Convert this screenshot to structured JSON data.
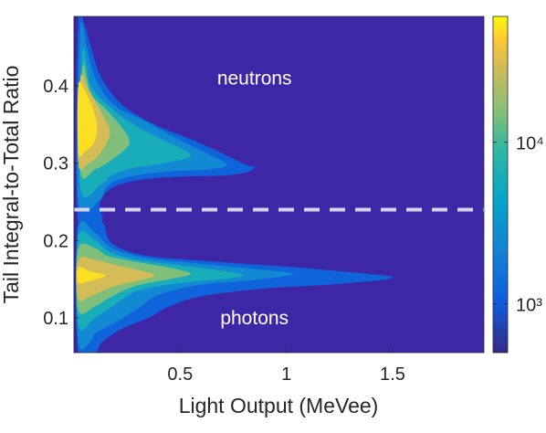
{
  "chart_data": {
    "type": "heatmap",
    "title": "",
    "xlabel": "Light Output (MeVee)",
    "ylabel": "Tail Integral-to-Total Ratio",
    "xlim": [
      0.0,
      1.93
    ],
    "ylim": [
      0.055,
      0.49
    ],
    "xticks": [
      0.5,
      1,
      1.5
    ],
    "xtick_labels": [
      "0.5",
      "1",
      "1.5"
    ],
    "yticks": [
      0.1,
      0.2,
      0.3,
      0.4
    ],
    "ytick_labels": [
      "0.1",
      "0.2",
      "0.3",
      "0.4"
    ],
    "grid": false,
    "colorbar": {
      "scale": "log",
      "range": [
        500,
        60000
      ],
      "ticks": [
        1000,
        10000
      ],
      "tick_labels": [
        "10³",
        "10⁴"
      ],
      "colormap": "parula"
    },
    "threshold_line": {
      "y": 0.24,
      "style": "dashed",
      "color": "#D8D4EE"
    },
    "annotations": [
      {
        "text": "neutrons",
        "x": 0.85,
        "y": 0.41
      },
      {
        "text": "photons",
        "x": 0.85,
        "y": 0.1
      }
    ],
    "regions": [
      {
        "label": "neutrons",
        "levels": [
          {
            "value": 1200,
            "boundary": [
              [
                0.02,
                0.478
              ],
              [
                0.05,
                0.478
              ],
              [
                0.08,
                0.45
              ],
              [
                0.13,
                0.41
              ],
              [
                0.23,
                0.375
              ],
              [
                0.38,
                0.35
              ],
              [
                0.56,
                0.33
              ],
              [
                0.72,
                0.31
              ],
              [
                0.81,
                0.298
              ],
              [
                0.85,
                0.295
              ],
              [
                0.81,
                0.288
              ],
              [
                0.69,
                0.284
              ],
              [
                0.52,
                0.283
              ],
              [
                0.35,
                0.28
              ],
              [
                0.22,
                0.273
              ],
              [
                0.15,
                0.262
              ],
              [
                0.12,
                0.245
              ],
              [
                0.13,
                0.225
              ],
              [
                0.02,
                0.225
              ]
            ]
          },
          {
            "value": 2500,
            "boundary": [
              [
                0.03,
                0.47
              ],
              [
                0.06,
                0.45
              ],
              [
                0.1,
                0.41
              ],
              [
                0.19,
                0.375
              ],
              [
                0.33,
                0.355
              ],
              [
                0.5,
                0.33
              ],
              [
                0.63,
                0.312
              ],
              [
                0.72,
                0.298
              ],
              [
                0.63,
                0.292
              ],
              [
                0.48,
                0.29
              ],
              [
                0.33,
                0.286
              ],
              [
                0.21,
                0.279
              ],
              [
                0.15,
                0.268
              ],
              [
                0.12,
                0.252
              ],
              [
                0.02,
                0.252
              ]
            ]
          },
          {
            "value": 6000,
            "boundary": [
              [
                0.04,
                0.445
              ],
              [
                0.08,
                0.4
              ],
              [
                0.16,
                0.375
              ],
              [
                0.28,
                0.35
              ],
              [
                0.42,
                0.33
              ],
              [
                0.55,
                0.31
              ],
              [
                0.42,
                0.3
              ],
              [
                0.28,
                0.294
              ],
              [
                0.18,
                0.285
              ],
              [
                0.13,
                0.273
              ],
              [
                0.03,
                0.268
              ]
            ]
          },
          {
            "value": 15000,
            "boundary": [
              [
                0.04,
                0.425
              ],
              [
                0.08,
                0.39
              ],
              [
                0.15,
                0.37
              ],
              [
                0.23,
                0.345
              ],
              [
                0.26,
                0.325
              ],
              [
                0.18,
                0.305
              ],
              [
                0.1,
                0.292
              ],
              [
                0.03,
                0.29
              ]
            ]
          },
          {
            "value": 30000,
            "boundary": [
              [
                0.03,
                0.41
              ],
              [
                0.07,
                0.395
              ],
              [
                0.13,
                0.365
              ],
              [
                0.17,
                0.34
              ],
              [
                0.13,
                0.315
              ],
              [
                0.07,
                0.3
              ],
              [
                0.02,
                0.3
              ]
            ]
          },
          {
            "value": 50000,
            "boundary": [
              [
                0.02,
                0.4
              ],
              [
                0.05,
                0.395
              ],
              [
                0.09,
                0.37
              ],
              [
                0.11,
                0.345
              ],
              [
                0.09,
                0.325
              ],
              [
                0.05,
                0.315
              ],
              [
                0.02,
                0.315
              ]
            ]
          }
        ]
      },
      {
        "label": "photons",
        "levels": [
          {
            "value": 1200,
            "boundary": [
              [
                0.02,
                0.225
              ],
              [
                0.13,
                0.225
              ],
              [
                0.18,
                0.196
              ],
              [
                0.35,
                0.18
              ],
              [
                0.7,
                0.172
              ],
              [
                1.05,
                0.165
              ],
              [
                1.3,
                0.159
              ],
              [
                1.45,
                0.155
              ],
              [
                1.5,
                0.153
              ],
              [
                1.45,
                0.149
              ],
              [
                1.2,
                0.143
              ],
              [
                0.9,
                0.138
              ],
              [
                0.6,
                0.128
              ],
              [
                0.45,
                0.115
              ],
              [
                0.35,
                0.1
              ],
              [
                0.22,
                0.085
              ],
              [
                0.13,
                0.068
              ],
              [
                0.1,
                0.055
              ],
              [
                0.02,
                0.055
              ]
            ]
          },
          {
            "value": 2500,
            "boundary": [
              [
                0.02,
                0.215
              ],
              [
                0.1,
                0.21
              ],
              [
                0.18,
                0.19
              ],
              [
                0.35,
                0.177
              ],
              [
                0.6,
                0.17
              ],
              [
                0.85,
                0.163
              ],
              [
                1.03,
                0.157
              ],
              [
                0.85,
                0.149
              ],
              [
                0.6,
                0.143
              ],
              [
                0.4,
                0.13
              ],
              [
                0.3,
                0.112
              ],
              [
                0.2,
                0.095
              ],
              [
                0.1,
                0.08
              ],
              [
                0.08,
                0.07
              ],
              [
                0.02,
                0.07
              ]
            ]
          },
          {
            "value": 6000,
            "boundary": [
              [
                0.02,
                0.205
              ],
              [
                0.1,
                0.2
              ],
              [
                0.17,
                0.185
              ],
              [
                0.3,
                0.175
              ],
              [
                0.5,
                0.168
              ],
              [
                0.72,
                0.16
              ],
              [
                0.8,
                0.155
              ],
              [
                0.7,
                0.15
              ],
              [
                0.5,
                0.145
              ],
              [
                0.3,
                0.135
              ],
              [
                0.2,
                0.118
              ],
              [
                0.1,
                0.1
              ],
              [
                0.02,
                0.09
              ]
            ]
          },
          {
            "value": 15000,
            "boundary": [
              [
                0.02,
                0.19
              ],
              [
                0.1,
                0.19
              ],
              [
                0.16,
                0.18
              ],
              [
                0.3,
                0.172
              ],
              [
                0.45,
                0.165
              ],
              [
                0.55,
                0.157
              ],
              [
                0.45,
                0.15
              ],
              [
                0.3,
                0.142
              ],
              [
                0.18,
                0.128
              ],
              [
                0.1,
                0.115
              ],
              [
                0.02,
                0.11
              ]
            ]
          },
          {
            "value": 30000,
            "boundary": [
              [
                0.02,
                0.175
              ],
              [
                0.1,
                0.175
              ],
              [
                0.2,
                0.168
              ],
              [
                0.3,
                0.162
              ],
              [
                0.38,
                0.155
              ],
              [
                0.3,
                0.148
              ],
              [
                0.18,
                0.14
              ],
              [
                0.08,
                0.128
              ],
              [
                0.02,
                0.125
              ]
            ]
          },
          {
            "value": 50000,
            "boundary": [
              [
                0.02,
                0.165
              ],
              [
                0.08,
                0.16
              ],
              [
                0.15,
                0.155
              ],
              [
                0.08,
                0.148
              ],
              [
                0.02,
                0.145
              ]
            ]
          }
        ]
      }
    ]
  },
  "colors": {
    "background": "#3E27A6",
    "dashed_line": "#D8D4EE",
    "annotation_text": "#FFFFFF"
  }
}
